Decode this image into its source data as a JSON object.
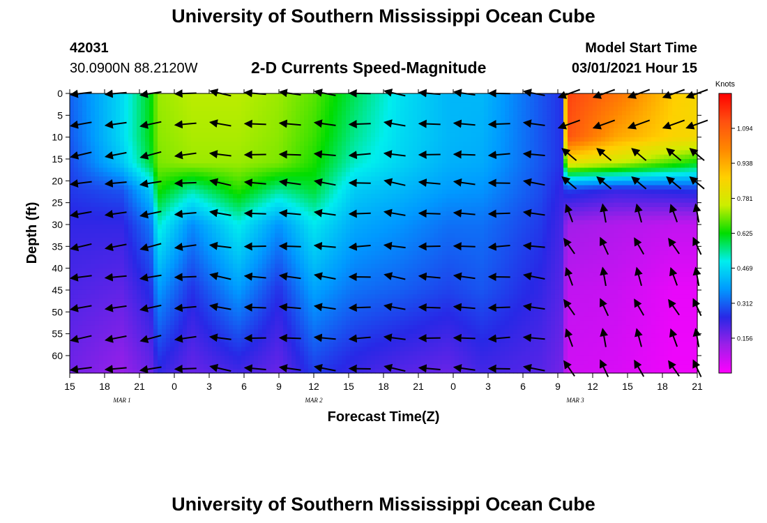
{
  "page": {
    "title_top": "University of Southern Mississippi Ocean Cube",
    "title_bottom": "University of Southern Mississippi Ocean Cube"
  },
  "header": {
    "station_id": "42031",
    "coordinates": "30.0900N 88.2120W",
    "plot_title": "2-D Currents Speed-Magnitude",
    "model_label": "Model Start Time",
    "model_time": "03/01/2021 Hour 15"
  },
  "chart_data": {
    "type": "heatmap",
    "title": "2-D Currents Speed-Magnitude",
    "xlabel": "Forecast Time(Z)",
    "ylabel": "Depth (ft)",
    "x_tick_labels": [
      "15",
      "18",
      "21",
      "0",
      "3",
      "6",
      "9",
      "12",
      "15",
      "18",
      "21",
      "0",
      "3",
      "6",
      "9",
      "12",
      "15",
      "18",
      "21"
    ],
    "x_range_hours": [
      0,
      54
    ],
    "date_labels": [
      {
        "text": "MAR 1",
        "hour": 4.5
      },
      {
        "text": "MAR 2",
        "hour": 21
      },
      {
        "text": "MAR 3",
        "hour": 43.5
      }
    ],
    "y_ticks": [
      0,
      5,
      10,
      15,
      20,
      25,
      30,
      35,
      40,
      45,
      50,
      55,
      60
    ],
    "ylim": [
      0,
      64
    ],
    "colorbar": {
      "unit": "Knots",
      "ticks": [
        "1.094",
        "0.938",
        "0.781",
        "0.625",
        "0.469",
        "0.312",
        "0.156"
      ],
      "tick_values": [
        1.094,
        0.938,
        0.781,
        0.625,
        0.469,
        0.312,
        0.156
      ],
      "range": [
        0,
        1.25
      ],
      "colors": [
        "#ff00ff",
        "#9d1fe8",
        "#2828e6",
        "#0099ff",
        "#00eeee",
        "#00dd00",
        "#ccee00",
        "#ffd000",
        "#ff8800",
        "#ff5010",
        "#ff0000"
      ]
    },
    "speed_profiles": [
      {
        "hour": 0.2,
        "speeds": [
          0.32,
          0.31,
          0.29,
          0.27,
          0.24,
          0.21,
          0.17
        ]
      },
      {
        "hour": 4.5,
        "speeds": [
          0.47,
          0.47,
          0.44,
          0.3,
          0.24,
          0.19,
          0.13
        ]
      },
      {
        "hour": 7,
        "speeds": [
          0.62,
          0.62,
          0.6,
          0.45,
          0.34,
          0.26,
          0.18
        ]
      },
      {
        "hour": 7.6,
        "speeds": [
          0.72,
          0.71,
          0.7,
          0.64,
          0.52,
          0.38,
          0.24
        ]
      },
      {
        "hour": 10.5,
        "speeds": [
          0.74,
          0.73,
          0.72,
          0.54,
          0.36,
          0.26,
          0.18
        ]
      },
      {
        "hour": 14.5,
        "speeds": [
          0.74,
          0.73,
          0.72,
          0.65,
          0.5,
          0.38,
          0.22
        ]
      },
      {
        "hour": 18,
        "speeds": [
          0.72,
          0.71,
          0.7,
          0.55,
          0.37,
          0.26,
          0.18
        ]
      },
      {
        "hour": 21,
        "speeds": [
          0.68,
          0.66,
          0.64,
          0.6,
          0.49,
          0.39,
          0.27
        ]
      },
      {
        "hour": 24.5,
        "speeds": [
          0.58,
          0.55,
          0.52,
          0.45,
          0.4,
          0.33,
          0.23
        ]
      },
      {
        "hour": 28.5,
        "speeds": [
          0.48,
          0.47,
          0.46,
          0.42,
          0.37,
          0.31,
          0.2
        ]
      },
      {
        "hour": 32.5,
        "speeds": [
          0.42,
          0.42,
          0.41,
          0.38,
          0.33,
          0.28,
          0.18
        ]
      },
      {
        "hour": 35.5,
        "speeds": [
          0.42,
          0.41,
          0.4,
          0.37,
          0.33,
          0.3,
          0.22
        ]
      },
      {
        "hour": 40.5,
        "speeds": [
          0.3,
          0.3,
          0.3,
          0.29,
          0.27,
          0.24,
          0.2
        ]
      },
      {
        "hour": 42.3,
        "speeds": [
          0.26,
          0.26,
          0.26,
          0.24,
          0.22,
          0.2,
          0.17
        ]
      },
      {
        "hour": 42.8,
        "speeds": [
          1.15,
          1.12,
          0.8,
          0.28,
          0.12,
          0.08,
          0.06
        ]
      },
      {
        "hour": 47,
        "speeds": [
          1.05,
          0.95,
          0.75,
          0.24,
          0.1,
          0.07,
          0.05
        ]
      },
      {
        "hour": 52,
        "speeds": [
          0.88,
          0.86,
          0.66,
          0.26,
          0.08,
          0.03,
          0.02
        ]
      },
      {
        "hour": 54,
        "speeds": [
          0.85,
          0.85,
          0.62,
          0.27,
          0.08,
          0.03,
          0.02
        ]
      }
    ],
    "profile_depths": [
      0,
      10,
      16,
      22,
      30,
      45,
      64
    ],
    "vector_hours": [
      1,
      4,
      7,
      10,
      13,
      16,
      19,
      22,
      25,
      28,
      31,
      34,
      37,
      40,
      43,
      46,
      49,
      52,
      54
    ],
    "vector_depths": [
      0,
      7,
      14,
      20.5,
      27.5,
      35,
      42,
      49,
      56,
      63
    ],
    "vector_direction_deg": {
      "north_vectors": "after hour 43 below 22 ft point north/north-west",
      "angles_part1": [
        -170,
        -172,
        -168,
        -175,
        170,
        178,
        175,
        172,
        -178,
        170,
        178,
        175,
        -178,
        172,
        -175,
        178,
        -172,
        175,
        -170
      ],
      "note": "angles in degrees, 0 = east, counter-clockwise"
    }
  }
}
